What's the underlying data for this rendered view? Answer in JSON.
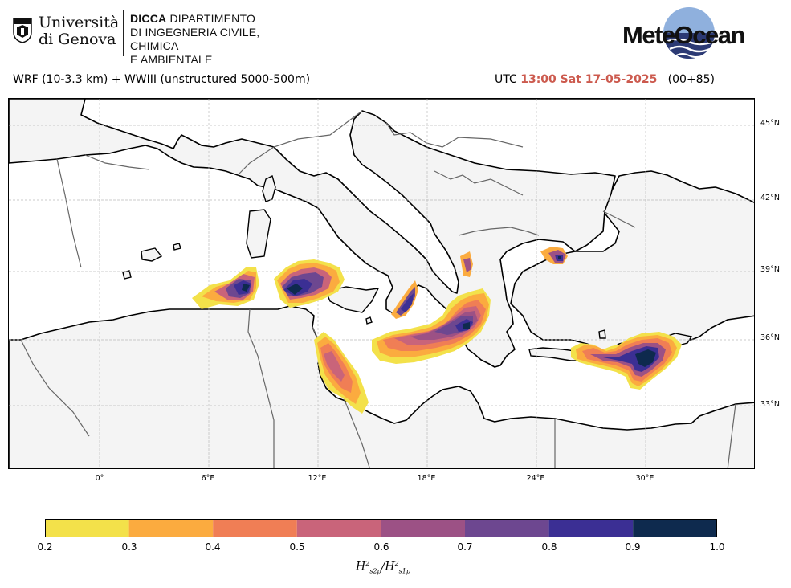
{
  "header": {
    "university": {
      "line1": "Università",
      "line2": "di Genova"
    },
    "department": {
      "abbr": "DICCA",
      "line1": "DIPARTIMENTO",
      "line2": "DI INGEGNERIA CIVILE, CHIMICA",
      "line3": "E AMBIENTALE"
    },
    "brand": "MeteOcean"
  },
  "title": {
    "model": "WRF (10-3.3 km) + WWIII (unstructured 5000-500m)",
    "utc_label": "UTC",
    "time": "13:00 Sat 17-05-2025",
    "lead": "(00+85)"
  },
  "map": {
    "land_color": "#f4f4f4",
    "sea_color": "#ffffff",
    "coast_color": "#000000",
    "border_color": "#666666",
    "lat_labels": [
      "45°N",
      "42°N",
      "39°N",
      "36°N",
      "33°N"
    ],
    "lon_labels": [
      "0°",
      "6°E",
      "12°E",
      "18°E",
      "24°E",
      "30°E"
    ]
  },
  "colorbar": {
    "ticks": [
      "0.2",
      "0.3",
      "0.4",
      "0.5",
      "0.6",
      "0.7",
      "0.8",
      "0.9",
      "1.0"
    ],
    "colors": [
      "#f3e14a",
      "#fbab3f",
      "#f07e55",
      "#c9647a",
      "#9c5185",
      "#6d4790",
      "#3b2f94",
      "#0e2a4e"
    ],
    "label_base": "H",
    "label_num_sub": "s2p",
    "label_den_sub": "s1p",
    "label_sup": "2"
  }
}
